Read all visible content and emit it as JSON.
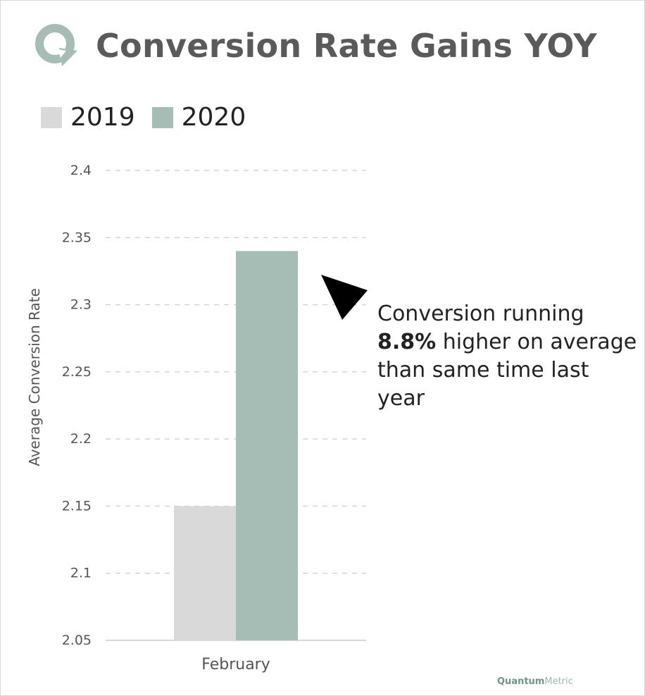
{
  "header": {
    "title": "Conversion Rate Gains YOY",
    "logo_icon": "quantum-metric-q-icon",
    "logo_color": "#a5bdb4"
  },
  "legend": [
    {
      "label": "2019",
      "color": "#d9d9d9"
    },
    {
      "label": "2020",
      "color": "#a5bdb4"
    }
  ],
  "annotation": {
    "line1": "Conversion running",
    "bold": "8.8%",
    "rest": " higher on average than same time last year",
    "pointer_icon": "triangle-pointer-icon"
  },
  "brand": {
    "part1": "Quantum",
    "part2": "Metric"
  },
  "chart_data": {
    "type": "bar",
    "title": "Conversion Rate Gains YOY",
    "categories": [
      "February"
    ],
    "series": [
      {
        "name": "2019",
        "values": [
          2.15
        ],
        "color": "#d9d9d9"
      },
      {
        "name": "2020",
        "values": [
          2.34
        ],
        "color": "#a5bdb4"
      }
    ],
    "xlabel": "",
    "ylabel": "Average Conversion Rate",
    "ylim": [
      2.05,
      2.4
    ],
    "yticks": [
      "2.05",
      "2.1",
      "2.15",
      "2.2",
      "2.25",
      "2.3",
      "2.35",
      "2.4"
    ],
    "grid": true,
    "grid_style": "dashed",
    "legend_position": "top-left"
  }
}
